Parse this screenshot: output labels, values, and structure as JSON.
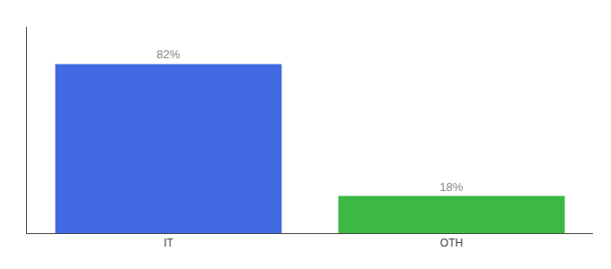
{
  "chart_data": {
    "type": "bar",
    "categories": [
      "IT",
      "OTH"
    ],
    "values": [
      82,
      18
    ],
    "value_labels": [
      "82%",
      "18%"
    ],
    "colors": [
      "#4169e1",
      "#3cb943"
    ],
    "ylim": [
      0,
      100
    ],
    "data_labels": true,
    "tick_labels": "x",
    "grid": false
  }
}
